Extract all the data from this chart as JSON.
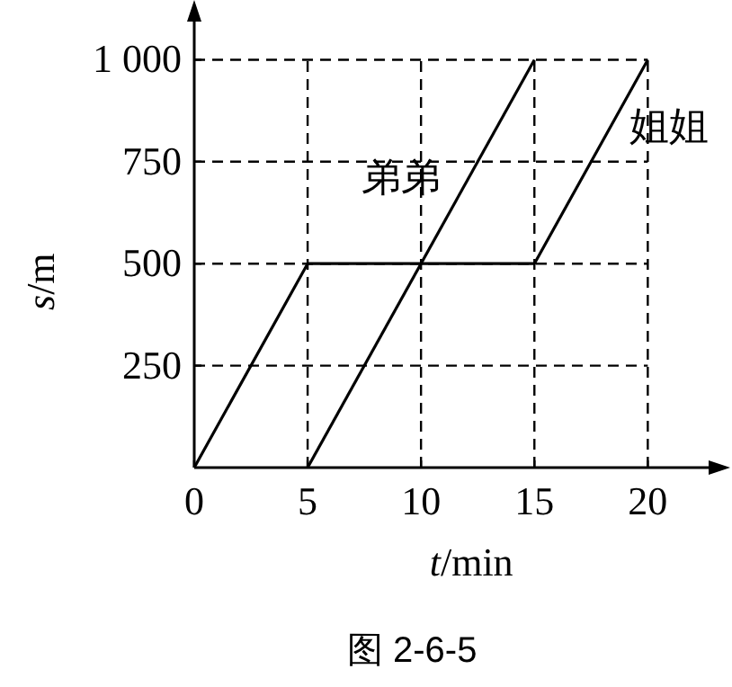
{
  "chart_data": {
    "type": "line",
    "xlabel": "*t*/min",
    "ylabel": "*s*/m",
    "xlim": [
      0,
      23
    ],
    "ylim": [
      0,
      1120
    ],
    "xticks": [
      0,
      5,
      10,
      15,
      20
    ],
    "yticks": [
      250,
      500,
      750,
      {
        "value": 1000,
        "label": "1 000"
      }
    ],
    "grid": true,
    "series": [
      {
        "name": "弟弟",
        "color": "#000000",
        "x": [
          5,
          15
        ],
        "values": [
          0,
          1000
        ]
      },
      {
        "name": "姐姐",
        "color": "#000000",
        "x": [
          0,
          5,
          15,
          20
        ],
        "values": [
          0,
          500,
          500,
          1000
        ]
      }
    ],
    "annotations": [
      "图 2-6-5"
    ]
  }
}
